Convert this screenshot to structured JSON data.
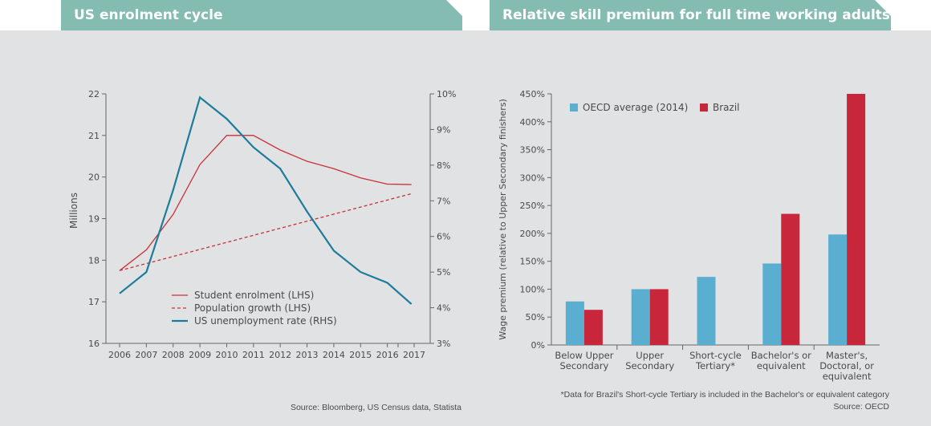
{
  "panels": {
    "left_title": "US enrolment cycle",
    "right_title": "Relative skill premium for full time working adults",
    "left_source": "Source: Bloomberg, US Census data, Statista",
    "right_note": "*Data for Brazil's Short-cycle Tertiary is included in the Bachelor's or equivalent category",
    "right_source": "Source: OECD"
  },
  "chart_data": [
    {
      "type": "line",
      "title": "",
      "xlabel": "",
      "ylabel": "Millions",
      "x": [
        2006,
        2007,
        2008,
        2009,
        2010,
        2011,
        2012,
        2013,
        2014,
        2015,
        2016,
        2017
      ],
      "x_extra": [
        2016.4
      ],
      "ylim": [
        16,
        22
      ],
      "y_ticks": [
        16,
        17,
        18,
        19,
        20,
        21,
        22
      ],
      "y2lim": [
        3,
        10
      ],
      "y2_ticks": [
        "3%",
        "4%",
        "5%",
        "6%",
        "7%",
        "8%",
        "9%",
        "10%"
      ],
      "grid": false,
      "legend_position": "bottom-center",
      "series": [
        {
          "name": "Student enrolment (LHS)",
          "axis": "left",
          "style": "solid",
          "color": "#c8313a",
          "points": [
            [
              2006,
              17.75
            ],
            [
              2007,
              18.25
            ],
            [
              2008,
              19.1
            ],
            [
              2009,
              20.3
            ],
            [
              2010,
              21.0
            ],
            [
              2011,
              21.0
            ],
            [
              2012,
              20.65
            ],
            [
              2013,
              20.38
            ],
            [
              2014,
              20.2
            ],
            [
              2015,
              19.98
            ],
            [
              2016,
              19.83
            ],
            [
              2016.9,
              19.82
            ]
          ]
        },
        {
          "name": "Population growth (LHS)",
          "axis": "left",
          "style": "dashed",
          "color": "#c8313a",
          "points": [
            [
              2006,
              17.75
            ],
            [
              2016.9,
              19.6
            ]
          ]
        },
        {
          "name": "US unemployment rate (RHS)",
          "axis": "right",
          "style": "solid",
          "color": "#1d7b9c",
          "points": [
            [
              2006,
              4.4
            ],
            [
              2007,
              5.0
            ],
            [
              2008,
              7.3
            ],
            [
              2009,
              9.9
            ],
            [
              2010,
              9.3
            ],
            [
              2011,
              8.5
            ],
            [
              2012,
              7.9
            ],
            [
              2013,
              6.7
            ],
            [
              2014,
              5.6
            ],
            [
              2015,
              5.0
            ],
            [
              2016,
              4.7
            ],
            [
              2016.9,
              4.1
            ]
          ]
        }
      ]
    },
    {
      "type": "bar",
      "title": "",
      "xlabel": "",
      "ylabel": "Wage premium (relative to Upper Secondary finishers)",
      "categories": [
        [
          "Below Upper",
          "Secondary"
        ],
        [
          "Upper",
          "Secondary"
        ],
        [
          "Short-cycle",
          "Tertiary*"
        ],
        [
          "Bachelor's or",
          "equivalent"
        ],
        [
          "Master's,",
          "Doctoral, or",
          "equivalent"
        ]
      ],
      "ylim": [
        0,
        450
      ],
      "y_ticks": [
        "0%",
        "50%",
        "100%",
        "150%",
        "200%",
        "250%",
        "300%",
        "350%",
        "400%",
        "450%"
      ],
      "grid": false,
      "legend_position": "top-left",
      "series": [
        {
          "name": "OECD average (2014)",
          "color": "#5aafd0",
          "values": [
            78,
            100,
            122,
            146,
            198
          ]
        },
        {
          "name": "Brazil",
          "color": "#c8263a",
          "values": [
            63,
            100,
            null,
            235,
            450
          ]
        }
      ]
    }
  ]
}
